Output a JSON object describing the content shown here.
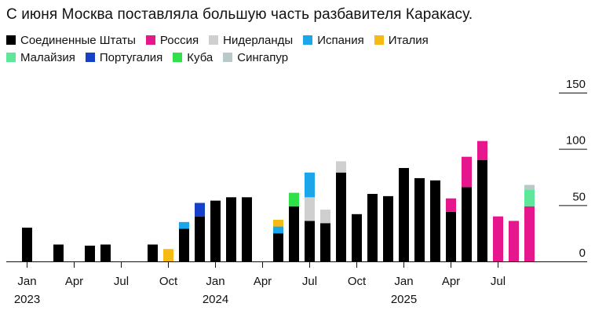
{
  "title": "С июня Москва поставляла большую часть разбавителя Каракасу.",
  "chart_data": {
    "type": "bar",
    "stacked": true,
    "legend_placement": "top",
    "grid": false,
    "ylim": [
      0,
      150
    ],
    "y_ticks": [
      150,
      100,
      50,
      0
    ],
    "x_ticks": [
      {
        "label": "Jan",
        "index": 0,
        "year": "2023"
      },
      {
        "label": "Apr",
        "index": 3
      },
      {
        "label": "Jul",
        "index": 6
      },
      {
        "label": "Oct",
        "index": 9
      },
      {
        "label": "Jan",
        "index": 12,
        "year": "2024"
      },
      {
        "label": "Apr",
        "index": 15
      },
      {
        "label": "Jul",
        "index": 18
      },
      {
        "label": "Oct",
        "index": 21
      },
      {
        "label": "Jan",
        "index": 24,
        "year": "2025"
      },
      {
        "label": "Apr",
        "index": 27
      },
      {
        "label": "Jul",
        "index": 30
      }
    ],
    "categories": [
      "2023-01",
      "2023-02",
      "2023-03",
      "2023-04",
      "2023-05",
      "2023-06",
      "2023-07",
      "2023-08",
      "2023-09",
      "2023-10",
      "2023-11",
      "2023-12",
      "2024-01",
      "2024-02",
      "2024-03",
      "2024-04",
      "2024-05",
      "2024-06",
      "2024-07",
      "2024-08",
      "2024-09",
      "2024-10",
      "2024-11",
      "2024-12",
      "2025-01",
      "2025-02",
      "2025-03",
      "2025-04",
      "2025-05",
      "2025-06",
      "2025-07",
      "2025-08",
      "2025-09"
    ],
    "series": [
      {
        "name": "Соединенные Штаты",
        "color": "#000000",
        "values": [
          30,
          0,
          15,
          0,
          14,
          15,
          0,
          0,
          15,
          0,
          29,
          40,
          54,
          57,
          57,
          0,
          25,
          49,
          36,
          34,
          79,
          42,
          60,
          58,
          83,
          74,
          72,
          44,
          66,
          90,
          0,
          0,
          0
        ]
      },
      {
        "name": "Россия",
        "color": "#e6178c",
        "values": [
          0,
          0,
          0,
          0,
          0,
          0,
          0,
          0,
          0,
          0,
          0,
          0,
          0,
          0,
          0,
          0,
          0,
          0,
          0,
          0,
          0,
          0,
          0,
          0,
          0,
          0,
          0,
          12,
          27,
          17,
          40,
          36,
          49
        ]
      },
      {
        "name": "Нидерланды",
        "color": "#cfcfcf",
        "values": [
          0,
          0,
          0,
          0,
          0,
          0,
          0,
          0,
          0,
          0,
          0,
          0,
          0,
          0,
          0,
          0,
          0,
          0,
          21,
          12,
          10,
          0,
          0,
          0,
          0,
          0,
          0,
          0,
          0,
          0,
          0,
          0,
          0
        ]
      },
      {
        "name": "Испания",
        "color": "#1aa6e8",
        "values": [
          0,
          0,
          0,
          0,
          0,
          0,
          0,
          0,
          0,
          0,
          6,
          0,
          0,
          0,
          0,
          0,
          6,
          0,
          22,
          0,
          0,
          0,
          0,
          0,
          0,
          0,
          0,
          0,
          0,
          0,
          0,
          0,
          0
        ]
      },
      {
        "name": "Италия",
        "color": "#f5bb14",
        "values": [
          0,
          0,
          0,
          0,
          0,
          0,
          0,
          0,
          0,
          11,
          0,
          0,
          0,
          0,
          0,
          0,
          6,
          0,
          0,
          0,
          0,
          0,
          0,
          0,
          0,
          0,
          0,
          0,
          0,
          0,
          0,
          0,
          0
        ]
      },
      {
        "name": "Малайзия",
        "color": "#5ee69a",
        "values": [
          0,
          0,
          0,
          0,
          0,
          0,
          0,
          0,
          0,
          0,
          0,
          0,
          0,
          0,
          0,
          0,
          0,
          0,
          0,
          0,
          0,
          0,
          0,
          0,
          0,
          0,
          0,
          0,
          0,
          0,
          0,
          0,
          15
        ]
      },
      {
        "name": "Португалия",
        "color": "#1640c8",
        "values": [
          0,
          0,
          0,
          0,
          0,
          0,
          0,
          0,
          0,
          0,
          0,
          12,
          0,
          0,
          0,
          0,
          0,
          0,
          0,
          0,
          0,
          0,
          0,
          0,
          0,
          0,
          0,
          0,
          0,
          0,
          0,
          0,
          0
        ]
      },
      {
        "name": "Куба",
        "color": "#2ee04a",
        "values": [
          0,
          0,
          0,
          0,
          0,
          0,
          0,
          0,
          0,
          0,
          0,
          0,
          0,
          0,
          0,
          0,
          0,
          12,
          0,
          0,
          0,
          0,
          0,
          0,
          0,
          0,
          0,
          0,
          0,
          0,
          0,
          0,
          0
        ]
      },
      {
        "name": "Сингапур",
        "color": "#b9c9c9",
        "values": [
          0,
          0,
          0,
          0,
          0,
          0,
          0,
          0,
          0,
          0,
          0,
          0,
          0,
          0,
          0,
          0,
          0,
          0,
          0,
          0,
          0,
          0,
          0,
          0,
          0,
          0,
          0,
          0,
          0,
          0,
          0,
          0,
          4
        ]
      }
    ],
    "extra_bar_indices": {
      "2025-07": 29.5
    }
  }
}
